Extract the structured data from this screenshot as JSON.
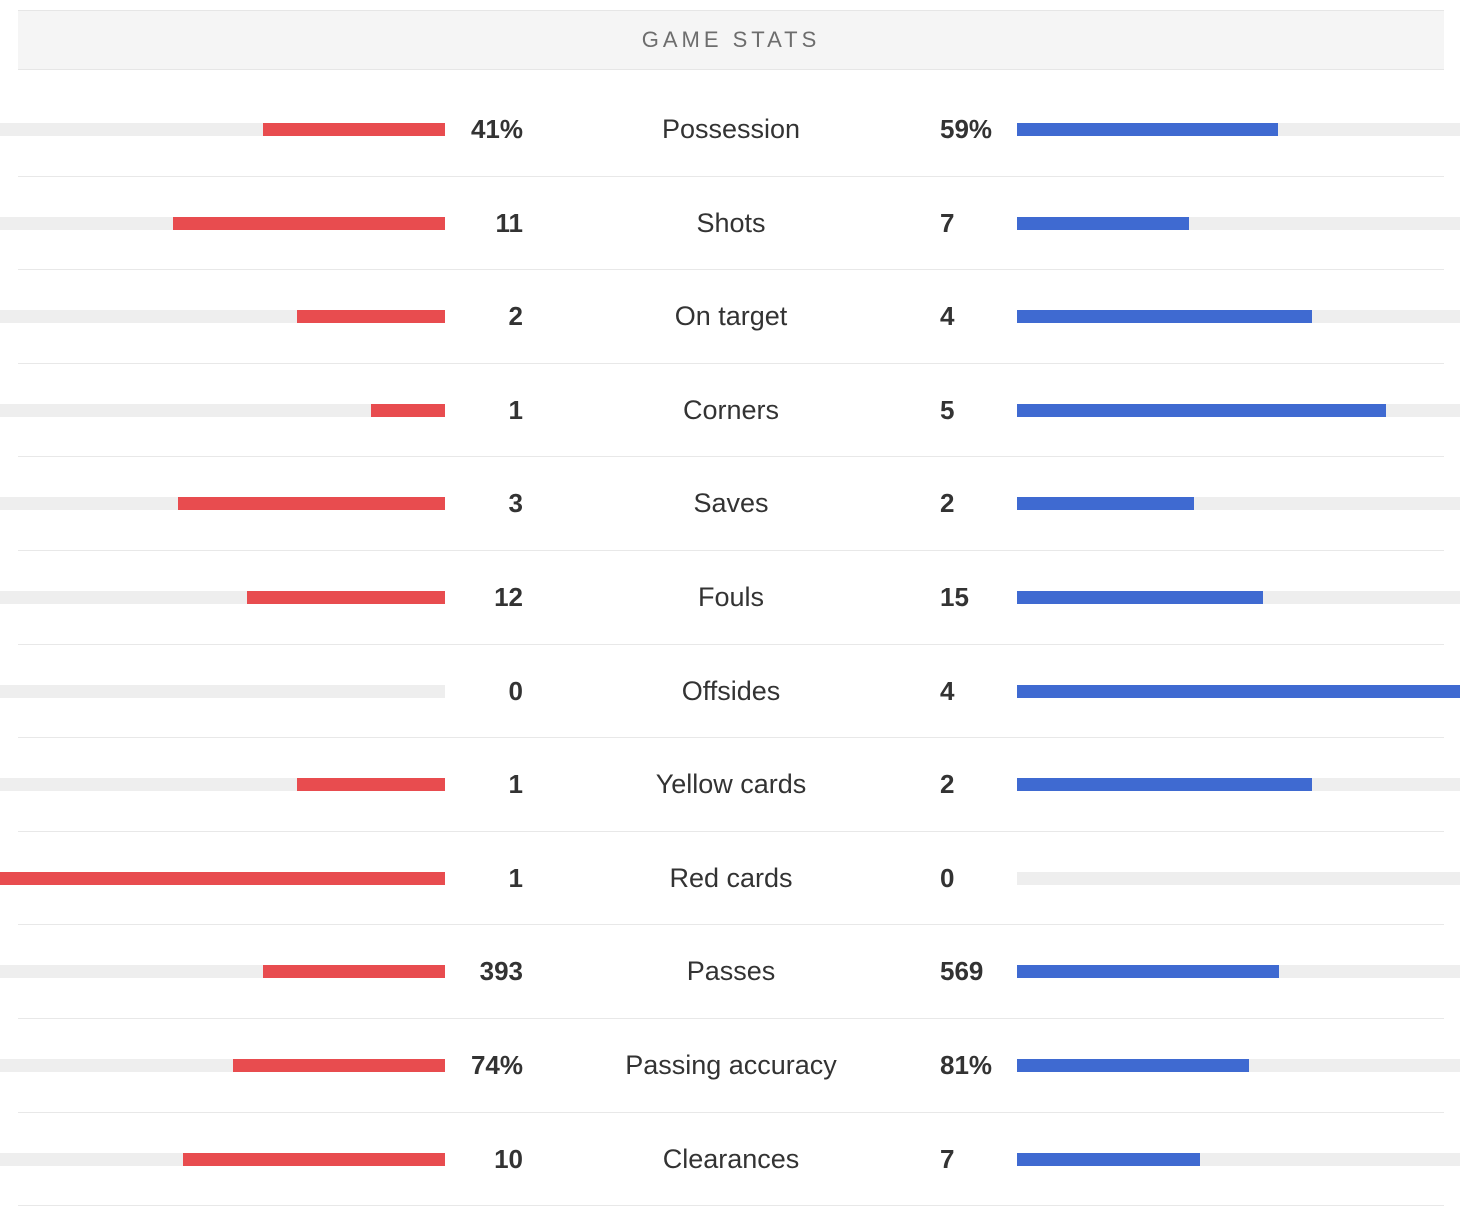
{
  "header": {
    "title": "GAME STATS"
  },
  "colors": {
    "home": "#e84c4f",
    "away": "#3f6ad1",
    "track": "#eeeeee"
  },
  "stats": [
    {
      "label": "Possession",
      "home": "41%",
      "away": "59%",
      "home_fill": 0.41,
      "away_fill": 0.59
    },
    {
      "label": "Shots",
      "home": "11",
      "away": "7",
      "home_fill": 0.611,
      "away_fill": 0.389
    },
    {
      "label": "On target",
      "home": "2",
      "away": "4",
      "home_fill": 0.333,
      "away_fill": 0.667
    },
    {
      "label": "Corners",
      "home": "1",
      "away": "5",
      "home_fill": 0.167,
      "away_fill": 0.833
    },
    {
      "label": "Saves",
      "home": "3",
      "away": "2",
      "home_fill": 0.6,
      "away_fill": 0.4
    },
    {
      "label": "Fouls",
      "home": "12",
      "away": "15",
      "home_fill": 0.444,
      "away_fill": 0.556
    },
    {
      "label": "Offsides",
      "home": "0",
      "away": "4",
      "home_fill": 0.0,
      "away_fill": 1.0
    },
    {
      "label": "Yellow cards",
      "home": "1",
      "away": "2",
      "home_fill": 0.333,
      "away_fill": 0.667
    },
    {
      "label": "Red cards",
      "home": "1",
      "away": "0",
      "home_fill": 1.0,
      "away_fill": 0.0
    },
    {
      "label": "Passes",
      "home": "393",
      "away": "569",
      "home_fill": 0.409,
      "away_fill": 0.591
    },
    {
      "label": "Passing accuracy",
      "home": "74%",
      "away": "81%",
      "home_fill": 0.477,
      "away_fill": 0.523
    },
    {
      "label": "Clearances",
      "home": "10",
      "away": "7",
      "home_fill": 0.588,
      "away_fill": 0.412
    }
  ]
}
